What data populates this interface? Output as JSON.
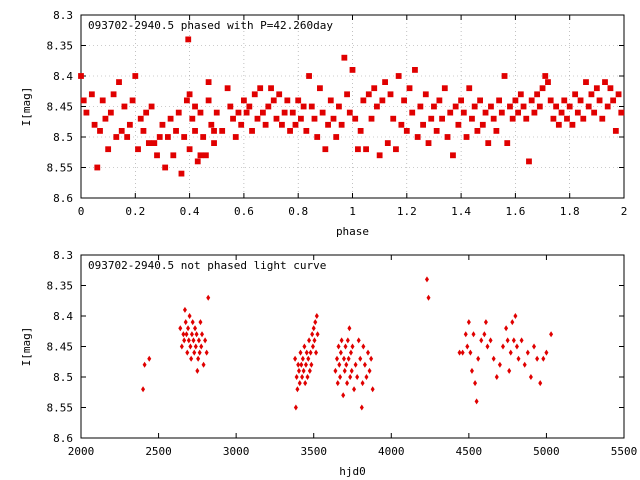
{
  "colors": {
    "point": "#e00000",
    "axis": "#000000",
    "grid": "#999999"
  },
  "chart_data": [
    {
      "type": "scatter",
      "title": "093702-2940.5 phased with P=42.260day",
      "xlabel": "phase",
      "ylabel": "I[mag]",
      "xlim": [
        0,
        2
      ],
      "ylim": [
        8.6,
        8.3
      ],
      "y_inverted": true,
      "xticks": [
        "0",
        "0.2",
        "0.4",
        "0.6",
        "0.8",
        "1",
        "1.2",
        "1.4",
        "1.6",
        "1.8",
        "2"
      ],
      "yticks": [
        "8.3",
        "8.35",
        "8.4",
        "8.45",
        "8.5",
        "8.55",
        "8.6"
      ],
      "grid": true,
      "points": [
        [
          0.0,
          8.4
        ],
        [
          0.01,
          8.44
        ],
        [
          0.02,
          8.46
        ],
        [
          0.04,
          8.43
        ],
        [
          0.05,
          8.48
        ],
        [
          0.06,
          8.55
        ],
        [
          0.07,
          8.49
        ],
        [
          0.08,
          8.44
        ],
        [
          0.09,
          8.47
        ],
        [
          0.1,
          8.52
        ],
        [
          0.11,
          8.46
        ],
        [
          0.12,
          8.43
        ],
        [
          0.13,
          8.5
        ],
        [
          0.14,
          8.41
        ],
        [
          0.15,
          8.49
        ],
        [
          0.16,
          8.45
        ],
        [
          0.17,
          8.5
        ],
        [
          0.18,
          8.48
        ],
        [
          0.19,
          8.44
        ],
        [
          0.2,
          8.4
        ],
        [
          0.21,
          8.52
        ],
        [
          0.22,
          8.47
        ],
        [
          0.23,
          8.49
        ],
        [
          0.24,
          8.46
        ],
        [
          0.25,
          8.51
        ],
        [
          0.26,
          8.45
        ],
        [
          0.27,
          8.51
        ],
        [
          0.28,
          8.53
        ],
        [
          0.29,
          8.5
        ],
        [
          0.3,
          8.48
        ],
        [
          0.31,
          8.55
        ],
        [
          0.32,
          8.5
        ],
        [
          0.33,
          8.47
        ],
        [
          0.34,
          8.53
        ],
        [
          0.35,
          8.49
        ],
        [
          0.36,
          8.46
        ],
        [
          0.37,
          8.56
        ],
        [
          0.38,
          8.5
        ],
        [
          0.39,
          8.44
        ],
        [
          0.4,
          8.52
        ],
        [
          0.41,
          8.47
        ],
        [
          0.42,
          8.49
        ],
        [
          0.43,
          8.54
        ],
        [
          0.44,
          8.46
        ],
        [
          0.45,
          8.5
        ],
        [
          0.46,
          8.53
        ],
        [
          0.47,
          8.44
        ],
        [
          0.48,
          8.48
        ],
        [
          0.49,
          8.51
        ],
        [
          0.5,
          8.46
        ],
        [
          0.395,
          8.34
        ],
        [
          0.4,
          8.43
        ],
        [
          0.42,
          8.45
        ],
        [
          0.44,
          8.53
        ],
        [
          0.47,
          8.41
        ],
        [
          0.49,
          8.49
        ],
        [
          0.52,
          8.49
        ],
        [
          0.54,
          8.42
        ],
        [
          0.55,
          8.45
        ],
        [
          0.56,
          8.47
        ],
        [
          0.57,
          8.5
        ],
        [
          0.58,
          8.46
        ],
        [
          0.59,
          8.48
        ],
        [
          0.6,
          8.44
        ],
        [
          0.61,
          8.46
        ],
        [
          0.62,
          8.45
        ],
        [
          0.63,
          8.49
        ],
        [
          0.64,
          8.43
        ],
        [
          0.65,
          8.47
        ],
        [
          0.66,
          8.42
        ],
        [
          0.67,
          8.46
        ],
        [
          0.68,
          8.48
        ],
        [
          0.69,
          8.45
        ],
        [
          0.7,
          8.42
        ],
        [
          0.71,
          8.44
        ],
        [
          0.72,
          8.47
        ],
        [
          0.73,
          8.43
        ],
        [
          0.74,
          8.48
        ],
        [
          0.75,
          8.46
        ],
        [
          0.76,
          8.44
        ],
        [
          0.77,
          8.49
        ],
        [
          0.78,
          8.46
        ],
        [
          0.79,
          8.48
        ],
        [
          0.8,
          8.44
        ],
        [
          0.81,
          8.47
        ],
        [
          0.82,
          8.45
        ],
        [
          0.83,
          8.49
        ],
        [
          0.84,
          8.4
        ],
        [
          0.85,
          8.45
        ],
        [
          0.86,
          8.47
        ],
        [
          0.87,
          8.5
        ],
        [
          0.88,
          8.42
        ],
        [
          0.89,
          8.46
        ],
        [
          0.9,
          8.52
        ],
        [
          0.91,
          8.48
        ],
        [
          0.92,
          8.44
        ],
        [
          0.93,
          8.47
        ],
        [
          0.94,
          8.5
        ],
        [
          0.95,
          8.45
        ],
        [
          0.96,
          8.48
        ],
        [
          0.97,
          8.37
        ],
        [
          0.98,
          8.43
        ],
        [
          0.99,
          8.46
        ],
        [
          1.0,
          8.39
        ],
        [
          1.01,
          8.47
        ],
        [
          1.02,
          8.52
        ],
        [
          1.03,
          8.49
        ],
        [
          1.04,
          8.44
        ],
        [
          1.05,
          8.52
        ],
        [
          1.06,
          8.43
        ],
        [
          1.07,
          8.47
        ],
        [
          1.08,
          8.42
        ],
        [
          1.09,
          8.45
        ],
        [
          1.1,
          8.53
        ],
        [
          1.11,
          8.44
        ],
        [
          1.12,
          8.41
        ],
        [
          1.13,
          8.51
        ],
        [
          1.14,
          8.43
        ],
        [
          1.15,
          8.47
        ],
        [
          1.16,
          8.52
        ],
        [
          1.17,
          8.4
        ],
        [
          1.18,
          8.48
        ],
        [
          1.19,
          8.44
        ],
        [
          1.2,
          8.49
        ],
        [
          1.21,
          8.42
        ],
        [
          1.22,
          8.46
        ],
        [
          1.23,
          8.39
        ],
        [
          1.24,
          8.5
        ],
        [
          1.25,
          8.45
        ],
        [
          1.26,
          8.48
        ],
        [
          1.27,
          8.43
        ],
        [
          1.28,
          8.51
        ],
        [
          1.29,
          8.47
        ],
        [
          1.3,
          8.45
        ],
        [
          1.31,
          8.49
        ],
        [
          1.32,
          8.44
        ],
        [
          1.33,
          8.47
        ],
        [
          1.34,
          8.42
        ],
        [
          1.35,
          8.5
        ],
        [
          1.36,
          8.46
        ],
        [
          1.37,
          8.53
        ],
        [
          1.38,
          8.45
        ],
        [
          1.39,
          8.48
        ],
        [
          1.4,
          8.44
        ],
        [
          1.41,
          8.46
        ],
        [
          1.42,
          8.5
        ],
        [
          1.43,
          8.42
        ],
        [
          1.44,
          8.47
        ],
        [
          1.45,
          8.45
        ],
        [
          1.46,
          8.49
        ],
        [
          1.47,
          8.44
        ],
        [
          1.48,
          8.48
        ],
        [
          1.49,
          8.46
        ],
        [
          1.5,
          8.51
        ],
        [
          1.51,
          8.45
        ],
        [
          1.52,
          8.47
        ],
        [
          1.53,
          8.49
        ],
        [
          1.54,
          8.44
        ],
        [
          1.55,
          8.46
        ],
        [
          1.56,
          8.4
        ],
        [
          1.57,
          8.51
        ],
        [
          1.58,
          8.45
        ],
        [
          1.59,
          8.47
        ],
        [
          1.6,
          8.44
        ],
        [
          1.61,
          8.46
        ],
        [
          1.62,
          8.43
        ],
        [
          1.63,
          8.45
        ],
        [
          1.64,
          8.47
        ],
        [
          1.65,
          8.54
        ],
        [
          1.66,
          8.44
        ],
        [
          1.67,
          8.46
        ],
        [
          1.68,
          8.43
        ],
        [
          1.69,
          8.45
        ],
        [
          1.7,
          8.42
        ],
        [
          1.71,
          8.4
        ],
        [
          1.72,
          8.41
        ],
        [
          1.73,
          8.44
        ],
        [
          1.74,
          8.47
        ],
        [
          1.75,
          8.45
        ],
        [
          1.76,
          8.48
        ],
        [
          1.77,
          8.46
        ],
        [
          1.78,
          8.44
        ],
        [
          1.79,
          8.47
        ],
        [
          1.8,
          8.45
        ],
        [
          1.81,
          8.48
        ],
        [
          1.82,
          8.43
        ],
        [
          1.83,
          8.46
        ],
        [
          1.84,
          8.44
        ],
        [
          1.85,
          8.47
        ],
        [
          1.86,
          8.41
        ],
        [
          1.87,
          8.45
        ],
        [
          1.88,
          8.43
        ],
        [
          1.89,
          8.46
        ],
        [
          1.9,
          8.42
        ],
        [
          1.91,
          8.44
        ],
        [
          1.92,
          8.47
        ],
        [
          1.93,
          8.41
        ],
        [
          1.94,
          8.45
        ],
        [
          1.95,
          8.42
        ],
        [
          1.96,
          8.44
        ],
        [
          1.97,
          8.49
        ],
        [
          1.98,
          8.43
        ],
        [
          1.99,
          8.46
        ]
      ]
    },
    {
      "type": "scatter",
      "title": "093702-2940.5 not phased light curve",
      "xlabel": "hjd0",
      "ylabel": "I[mag]",
      "xlim": [
        2000,
        5500
      ],
      "ylim": [
        8.6,
        8.3
      ],
      "y_inverted": true,
      "xticks": [
        "2000",
        "2500",
        "3000",
        "3500",
        "4000",
        "4500",
        "5000",
        "5500"
      ],
      "yticks": [
        "8.3",
        "8.35",
        "8.4",
        "8.45",
        "8.5",
        "8.55",
        "8.6"
      ],
      "grid": false,
      "points": [
        [
          2400,
          8.52
        ],
        [
          2410,
          8.48
        ],
        [
          2440,
          8.47
        ],
        [
          2640,
          8.42
        ],
        [
          2650,
          8.45
        ],
        [
          2660,
          8.43
        ],
        [
          2665,
          8.44
        ],
        [
          2670,
          8.39
        ],
        [
          2675,
          8.41
        ],
        [
          2680,
          8.43
        ],
        [
          2685,
          8.46
        ],
        [
          2690,
          8.42
        ],
        [
          2695,
          8.44
        ],
        [
          2700,
          8.4
        ],
        [
          2705,
          8.45
        ],
        [
          2710,
          8.47
        ],
        [
          2715,
          8.43
        ],
        [
          2720,
          8.41
        ],
        [
          2725,
          8.44
        ],
        [
          2730,
          8.46
        ],
        [
          2735,
          8.42
        ],
        [
          2740,
          8.45
        ],
        [
          2745,
          8.43
        ],
        [
          2750,
          8.49
        ],
        [
          2755,
          8.47
        ],
        [
          2760,
          8.44
        ],
        [
          2765,
          8.46
        ],
        [
          2770,
          8.41
        ],
        [
          2775,
          8.45
        ],
        [
          2780,
          8.43
        ],
        [
          2790,
          8.48
        ],
        [
          2800,
          8.44
        ],
        [
          2810,
          8.46
        ],
        [
          2820,
          8.37
        ],
        [
          3380,
          8.47
        ],
        [
          3385,
          8.55
        ],
        [
          3390,
          8.5
        ],
        [
          3395,
          8.52
        ],
        [
          3400,
          8.48
        ],
        [
          3405,
          8.49
        ],
        [
          3410,
          8.51
        ],
        [
          3415,
          8.46
        ],
        [
          3420,
          8.48
        ],
        [
          3425,
          8.5
        ],
        [
          3430,
          8.47
        ],
        [
          3435,
          8.49
        ],
        [
          3440,
          8.45
        ],
        [
          3445,
          8.51
        ],
        [
          3450,
          8.48
        ],
        [
          3455,
          8.46
        ],
        [
          3460,
          8.5
        ],
        [
          3465,
          8.47
        ],
        [
          3470,
          8.44
        ],
        [
          3475,
          8.49
        ],
        [
          3480,
          8.46
        ],
        [
          3485,
          8.48
        ],
        [
          3490,
          8.43
        ],
        [
          3495,
          8.45
        ],
        [
          3500,
          8.42
        ],
        [
          3505,
          8.44
        ],
        [
          3510,
          8.41
        ],
        [
          3515,
          8.46
        ],
        [
          3520,
          8.4
        ],
        [
          3525,
          8.43
        ],
        [
          3640,
          8.49
        ],
        [
          3650,
          8.47
        ],
        [
          3655,
          8.51
        ],
        [
          3660,
          8.45
        ],
        [
          3665,
          8.48
        ],
        [
          3670,
          8.5
        ],
        [
          3675,
          8.46
        ],
        [
          3680,
          8.44
        ],
        [
          3690,
          8.53
        ],
        [
          3695,
          8.47
        ],
        [
          3700,
          8.49
        ],
        [
          3705,
          8.45
        ],
        [
          3710,
          8.48
        ],
        [
          3715,
          8.51
        ],
        [
          3720,
          8.44
        ],
        [
          3725,
          8.47
        ],
        [
          3730,
          8.42
        ],
        [
          3735,
          8.5
        ],
        [
          3740,
          8.46
        ],
        [
          3745,
          8.49
        ],
        [
          3750,
          8.45
        ],
        [
          3760,
          8.52
        ],
        [
          3770,
          8.48
        ],
        [
          3780,
          8.5
        ],
        [
          3790,
          8.44
        ],
        [
          3800,
          8.47
        ],
        [
          3810,
          8.55
        ],
        [
          3815,
          8.51
        ],
        [
          3820,
          8.45
        ],
        [
          3830,
          8.48
        ],
        [
          3840,
          8.5
        ],
        [
          3850,
          8.46
        ],
        [
          3860,
          8.49
        ],
        [
          3870,
          8.47
        ],
        [
          3880,
          8.52
        ],
        [
          4230,
          8.34
        ],
        [
          4240,
          8.37
        ],
        [
          4440,
          8.46
        ],
        [
          4460,
          8.46
        ],
        [
          4480,
          8.43
        ],
        [
          4490,
          8.45
        ],
        [
          4500,
          8.41
        ],
        [
          4510,
          8.46
        ],
        [
          4520,
          8.49
        ],
        [
          4530,
          8.43
        ],
        [
          4540,
          8.51
        ],
        [
          4550,
          8.54
        ],
        [
          4560,
          8.47
        ],
        [
          4580,
          8.44
        ],
        [
          4600,
          8.43
        ],
        [
          4610,
          8.41
        ],
        [
          4620,
          8.45
        ],
        [
          4640,
          8.44
        ],
        [
          4660,
          8.47
        ],
        [
          4680,
          8.5
        ],
        [
          4700,
          8.48
        ],
        [
          4720,
          8.45
        ],
        [
          4740,
          8.42
        ],
        [
          4750,
          8.44
        ],
        [
          4760,
          8.49
        ],
        [
          4770,
          8.46
        ],
        [
          4780,
          8.41
        ],
        [
          4790,
          8.44
        ],
        [
          4800,
          8.4
        ],
        [
          4810,
          8.45
        ],
        [
          4820,
          8.47
        ],
        [
          4840,
          8.44
        ],
        [
          4860,
          8.48
        ],
        [
          4880,
          8.46
        ],
        [
          4900,
          8.5
        ],
        [
          4920,
          8.45
        ],
        [
          4940,
          8.47
        ],
        [
          4960,
          8.51
        ],
        [
          4980,
          8.47
        ],
        [
          5000,
          8.46
        ],
        [
          5030,
          8.43
        ]
      ]
    }
  ]
}
